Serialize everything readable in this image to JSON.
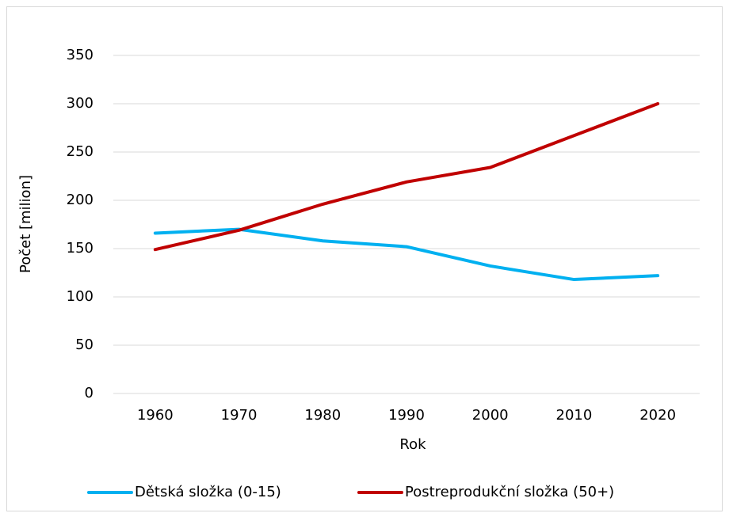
{
  "chart_data": {
    "type": "line",
    "xlabel": "Rok",
    "ylabel": "Počet [milion]",
    "categories": [
      "1960",
      "1970",
      "1980",
      "1990",
      "2000",
      "2010",
      "2020"
    ],
    "series": [
      {
        "name": "Dětská složka (0-15)",
        "color": "#00b0f0",
        "values": [
          166,
          170,
          158,
          152,
          132,
          118,
          122
        ]
      },
      {
        "name": "Postreprodukční složka (50+)",
        "color": "#c00000",
        "values": [
          149,
          169,
          196,
          219,
          234,
          267,
          300
        ]
      }
    ],
    "ylim": [
      0,
      350
    ],
    "yticks": [
      0,
      50,
      100,
      150,
      200,
      250,
      300,
      350
    ],
    "grid": true,
    "legend": "bottom"
  }
}
